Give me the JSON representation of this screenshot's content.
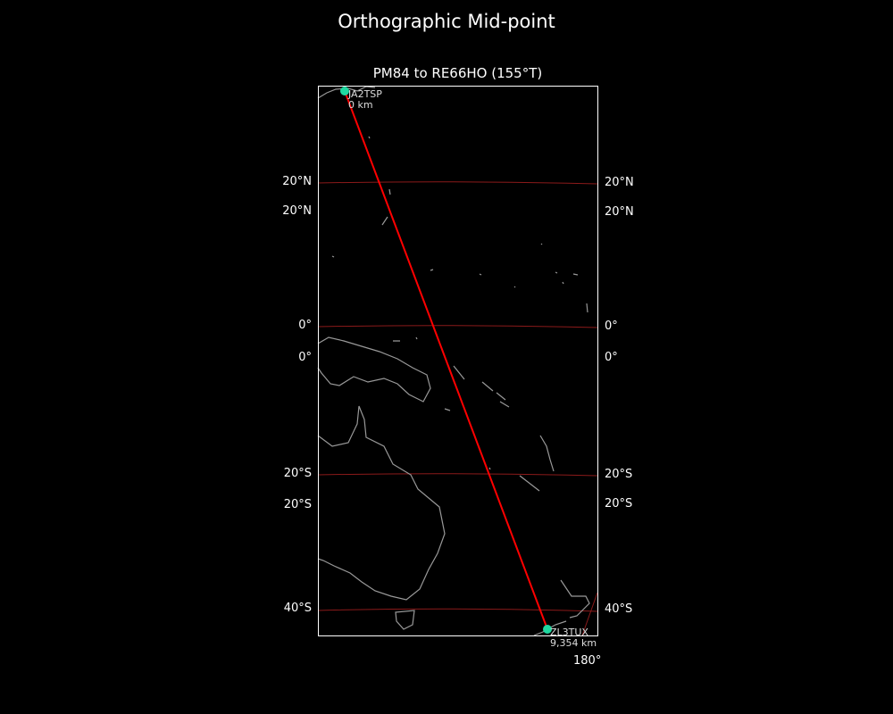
{
  "figure": {
    "title": "Orthographic Mid-point",
    "subtitle": "PM84 to RE66HO (155°T)"
  },
  "map": {
    "projection": "orthographic",
    "colors": {
      "background": "#000000",
      "coastline": "#999999",
      "gridline": "#8b1a1a",
      "path": "#ff0000",
      "station": "#1fd8a0",
      "frame": "#ffffff"
    },
    "gridlabels_left": [
      "20°N",
      "20°N",
      "0°",
      "0°",
      "20°S",
      "20°S",
      "40°S"
    ],
    "gridlabels_right": [
      "20°N",
      "20°N",
      "0°",
      "0°",
      "20°S",
      "20°S",
      "40°S"
    ],
    "gridlabel_bottom": "180°",
    "start": {
      "call": "JA2TSP",
      "distance": "0 km"
    },
    "end": {
      "call": "ZL3TUX",
      "distance": "9,354 km"
    }
  }
}
